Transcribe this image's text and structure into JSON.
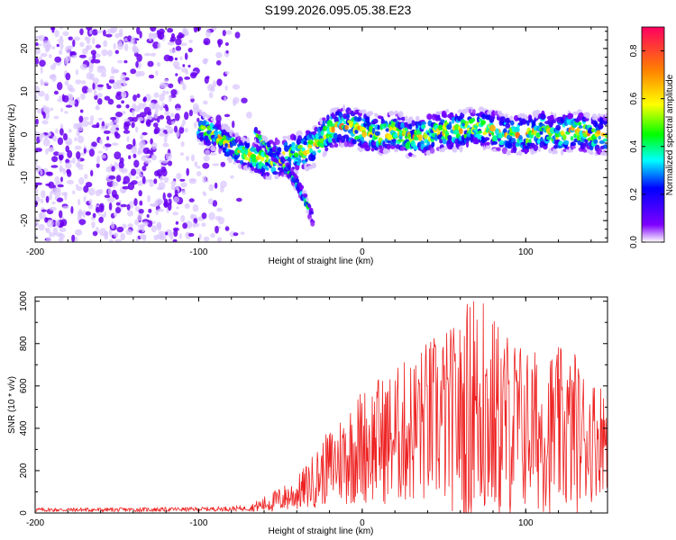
{
  "title": "S199.2026.095.05.38.E23",
  "colors": {
    "snr_line": "#ee2222",
    "axis": "#000000",
    "speckle_dark": "#6a00f0",
    "speckle_light": "#d8c4ff"
  },
  "chart_data": [
    {
      "type": "heatmap",
      "xlabel": "Height of straight line (km)",
      "ylabel": "Frequency (Hz)",
      "xlim": [
        -200,
        150
      ],
      "ylim": [
        -25,
        25
      ],
      "xticks": [
        -200,
        -100,
        0,
        100
      ],
      "yticks": [
        -20,
        -10,
        0,
        10,
        20
      ],
      "colorbar": {
        "label": "Normalized spectral amplitude",
        "range": [
          0,
          0.9
        ],
        "ticks": [
          0.0,
          0.2,
          0.4,
          0.6,
          0.8
        ],
        "tick_labels": [
          "0.0",
          "0.2",
          "0.4",
          "0.6",
          "0.8"
        ]
      },
      "features": {
        "noise_region_x": [
          -200,
          -75
        ],
        "main_echo": {
          "x": [
            -100,
            -90,
            -75,
            -60,
            -45,
            -30,
            -20,
            -10,
            0,
            10,
            20,
            30,
            40,
            50,
            60,
            70,
            80,
            90,
            100,
            110,
            120,
            130,
            140,
            150
          ],
          "freq": [
            2,
            0,
            -4,
            -6,
            -5,
            -3,
            1,
            2,
            1,
            0,
            1,
            -1,
            0,
            1,
            1,
            2,
            1,
            0,
            0,
            1,
            0,
            1,
            0,
            0
          ]
        },
        "branch_echo": {
          "x": [
            -65,
            -58,
            -50,
            -42,
            -35,
            -30
          ],
          "freq": [
            0,
            -3,
            -6,
            -10,
            -15,
            -20
          ]
        }
      }
    },
    {
      "type": "line",
      "xlabel": "Height of straight line (km)",
      "ylabel": "SNR (10 * v/v)",
      "xlim": [
        -200,
        150
      ],
      "ylim": [
        0,
        1020
      ],
      "xticks": [
        -200,
        -100,
        0,
        100
      ],
      "yticks": [
        0,
        200,
        400,
        600,
        800,
        1000
      ],
      "series": [
        {
          "name": "SNR",
          "envelope_x": [
            -200,
            -150,
            -100,
            -70,
            -60,
            -40,
            -30,
            -20,
            -10,
            0,
            10,
            20,
            30,
            40,
            50,
            60,
            65,
            70,
            80,
            90,
            100,
            110,
            120,
            130,
            140,
            150
          ],
          "envelope_mean": [
            15,
            15,
            18,
            22,
            40,
            90,
            150,
            220,
            270,
            320,
            340,
            360,
            390,
            430,
            440,
            450,
            470,
            480,
            440,
            420,
            400,
            380,
            390,
            370,
            350,
            370
          ],
          "envelope_amplitude": [
            10,
            10,
            10,
            12,
            40,
            80,
            130,
            180,
            240,
            280,
            300,
            330,
            360,
            400,
            430,
            460,
            560,
            540,
            500,
            450,
            400,
            380,
            400,
            380,
            300,
            250
          ],
          "peaks": [
            {
              "x": 68,
              "y": 1000
            },
            {
              "x": 74,
              "y": 990
            },
            {
              "x": 130,
              "y": 750
            },
            {
              "x": 10,
              "y": 630
            },
            {
              "x": 35,
              "y": 610
            }
          ]
        }
      ]
    }
  ]
}
